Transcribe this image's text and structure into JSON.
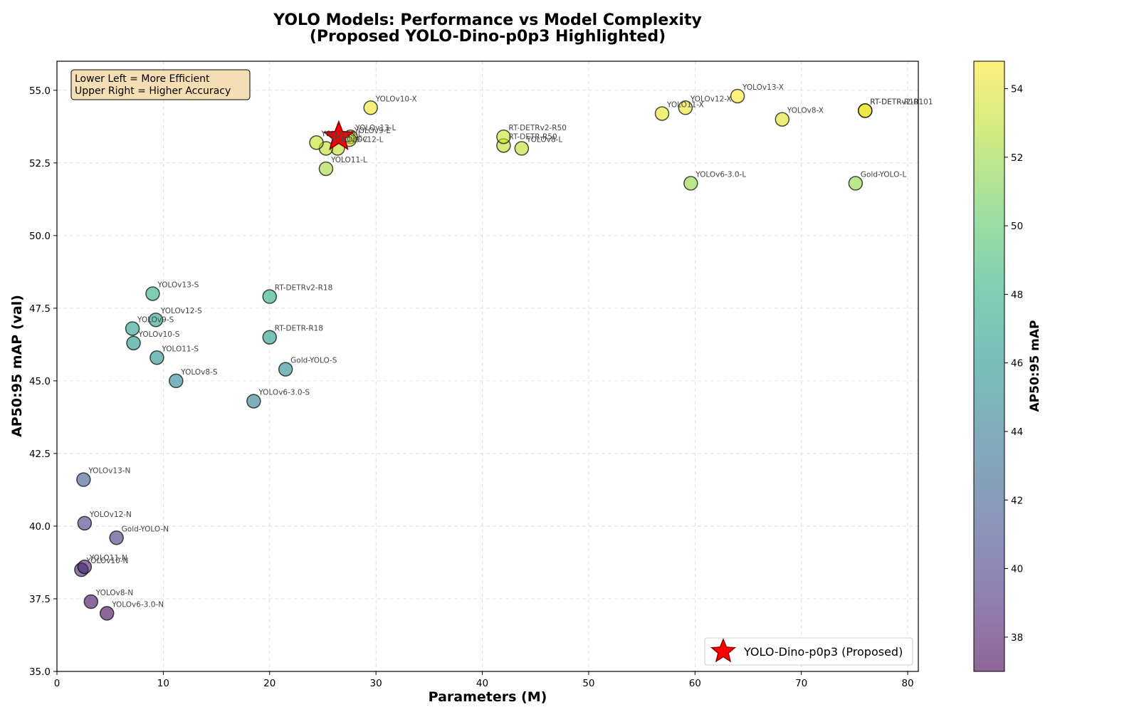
{
  "chart_data": {
    "type": "scatter",
    "title_line1": "YOLO Models: Performance vs Model Complexity",
    "title_line2": "(Proposed YOLO-Dino-p0p3 Highlighted)",
    "xlabel": "Parameters (M)",
    "ylabel": "AP50:95 mAP (val)",
    "xlim": [
      0,
      81
    ],
    "ylim": [
      35.0,
      56.0
    ],
    "x_ticks": [
      0,
      10,
      20,
      30,
      40,
      50,
      60,
      70,
      80
    ],
    "y_ticks": [
      35.0,
      37.5,
      40.0,
      42.5,
      45.0,
      47.5,
      50.0,
      52.5,
      55.0
    ],
    "grid": true,
    "annotation": [
      "Lower Left = More Efficient",
      "Upper Right = Higher Accuracy"
    ],
    "colorbar": {
      "label": "AP50:95 mAP",
      "range": [
        37.0,
        54.8
      ],
      "ticks": [
        38,
        40,
        42,
        44,
        46,
        48,
        50,
        52,
        54
      ],
      "colormap": "viridis"
    },
    "legend": {
      "position": "lower right",
      "entries": [
        "YOLO-Dino-p0p3 (Proposed)"
      ]
    },
    "highlight": {
      "name": "YOLO-Dino-p0p3 (Proposed)",
      "x": 26.5,
      "y": 53.4,
      "color": "#ff0000"
    },
    "points": [
      {
        "label": "YOLOv8-N",
        "x": 3.2,
        "y": 37.4
      },
      {
        "label": "YOLOv8-S",
        "x": 11.2,
        "y": 45.0
      },
      {
        "label": "YOLOv8-L",
        "x": 43.7,
        "y": 53.0
      },
      {
        "label": "YOLOv8-X",
        "x": 68.2,
        "y": 54.0
      },
      {
        "label": "YOLOv6-3.0-N",
        "x": 4.7,
        "y": 37.0
      },
      {
        "label": "YOLOv6-3.0-S",
        "x": 18.5,
        "y": 44.3
      },
      {
        "label": "YOLOv6-3.0-L",
        "x": 59.6,
        "y": 51.8
      },
      {
        "label": "YOLOv10-N",
        "x": 2.3,
        "y": 38.5
      },
      {
        "label": "YOLOv10-S",
        "x": 7.2,
        "y": 46.3
      },
      {
        "label": "YOLOv10-X",
        "x": 29.5,
        "y": 54.4
      },
      {
        "label": "YOLO11-N",
        "x": 2.6,
        "y": 38.6
      },
      {
        "label": "YOLO11-S",
        "x": 9.4,
        "y": 45.8
      },
      {
        "label": "YOLO11-L",
        "x": 25.3,
        "y": 52.3
      },
      {
        "label": "YOLO11-X",
        "x": 56.9,
        "y": 54.2
      },
      {
        "label": "YOLOv12-N",
        "x": 2.6,
        "y": 40.1
      },
      {
        "label": "YOLOv12-S",
        "x": 9.3,
        "y": 47.1
      },
      {
        "label": "YOLOv12-L",
        "x": 26.4,
        "y": 53.0
      },
      {
        "label": "YOLOv12-X",
        "x": 59.1,
        "y": 54.4
      },
      {
        "label": "YOLOv13-N",
        "x": 2.5,
        "y": 41.6
      },
      {
        "label": "YOLOv13-S",
        "x": 9.0,
        "y": 48.0
      },
      {
        "label": "YOLOv13-L",
        "x": 27.6,
        "y": 53.4
      },
      {
        "label": "YOLOv13-X",
        "x": 64.0,
        "y": 54.8
      },
      {
        "label": "YOLOv9-S",
        "x": 7.1,
        "y": 46.8
      },
      {
        "label": "YOLOv9-C",
        "x": 25.3,
        "y": 53.0
      },
      {
        "label": "YOLOv9-E",
        "x": 27.5,
        "y": 53.3
      },
      {
        "label": "YOLOv10-L",
        "x": 24.4,
        "y": 53.2
      },
      {
        "label": "Gold-YOLO-N",
        "x": 5.6,
        "y": 39.6
      },
      {
        "label": "Gold-YOLO-S",
        "x": 21.5,
        "y": 45.4
      },
      {
        "label": "Gold-YOLO-L",
        "x": 75.1,
        "y": 51.8
      },
      {
        "label": "RT-DETR-R18",
        "x": 20.0,
        "y": 46.5
      },
      {
        "label": "RT-DETR-R50",
        "x": 42.0,
        "y": 53.1
      },
      {
        "label": "RT-DETR-R101",
        "x": 76.0,
        "y": 54.3
      },
      {
        "label": "RT-DETRv2-R18",
        "x": 20.0,
        "y": 47.9
      },
      {
        "label": "RT-DETRv2-R50",
        "x": 42.0,
        "y": 53.4
      },
      {
        "label": "RT-DETRv2-R101",
        "x": 76.0,
        "y": 54.3
      }
    ]
  }
}
